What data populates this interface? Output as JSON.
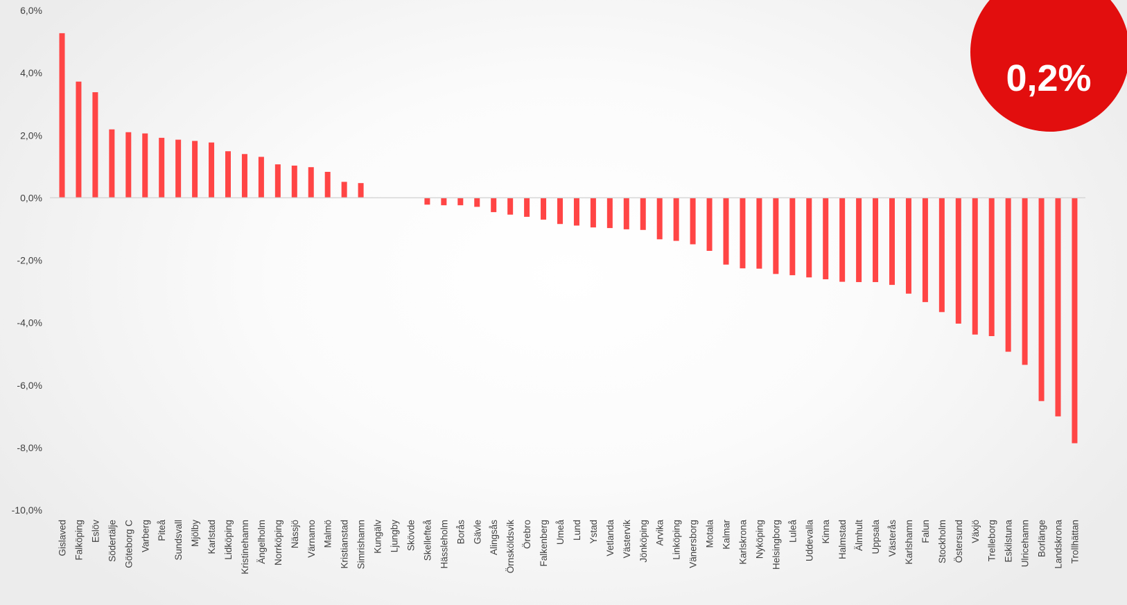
{
  "badge": {
    "value": "0,2%",
    "color": "#e20e0e"
  },
  "chart_data": {
    "type": "bar",
    "title": "",
    "xlabel": "",
    "ylabel": "",
    "ylim": [
      -10,
      6
    ],
    "yticks": [
      6,
      4,
      2,
      0,
      -2,
      -4,
      -6,
      -8,
      -10
    ],
    "ytick_labels": [
      "6,0%",
      "4,0%",
      "2,0%",
      "0,0%",
      "-2,0%",
      "-4,0%",
      "-6,0%",
      "-8,0%",
      "-10,0%"
    ],
    "grid": false,
    "bar_color": "#ff4545",
    "categories": [
      "Gislaved",
      "Falköping",
      "Eslöv",
      "Södertälje",
      "Göteborg C",
      "Varberg",
      "Piteå",
      "Sundsvall",
      "Mjölby",
      "Karlstad",
      "Lidköping",
      "Kristinehamn",
      "Ängelholm",
      "Norrköping",
      "Nässjö",
      "Värnamo",
      "Malmö",
      "Kristianstad",
      "Simrishamn",
      "Kungälv",
      "Ljungby",
      "Skövde",
      "Skellefteå",
      "Hässleholm",
      "Borås",
      "Gävle",
      "Alingsås",
      "Örnsköldsvik",
      "Örebro",
      "Falkenberg",
      "Umeå",
      "Lund",
      "Ystad",
      "Vetlanda",
      "Västervik",
      "Jönköping",
      "Arvika",
      "Linköping",
      "Vänersborg",
      "Motala",
      "Kalmar",
      "Karlskrona",
      "Nyköping",
      "Helsingborg",
      "Luleå",
      "Uddevalla",
      "Kinna",
      "Halmstad",
      "Älmhult",
      "Uppsala",
      "Västerås",
      "Karlshamn",
      "Falun",
      "Stockholm",
      "Östersund",
      "Växjö",
      "Trelleborg",
      "Eskilstuna",
      "Ulricehamn",
      "Borlänge",
      "Landskrona",
      "Trollhättan"
    ],
    "values": [
      5.27,
      3.72,
      3.38,
      2.19,
      2.1,
      2.06,
      1.92,
      1.86,
      1.82,
      1.77,
      1.49,
      1.4,
      1.31,
      1.07,
      1.03,
      0.98,
      0.83,
      0.51,
      0.47,
      0,
      0,
      0,
      -0.22,
      -0.24,
      -0.24,
      -0.29,
      -0.46,
      -0.54,
      -0.61,
      -0.7,
      -0.84,
      -0.89,
      -0.95,
      -0.97,
      -1.01,
      -1.03,
      -1.33,
      -1.38,
      -1.49,
      -1.7,
      -2.14,
      -2.26,
      -2.27,
      -2.44,
      -2.48,
      -2.55,
      -2.61,
      -2.69,
      -2.7,
      -2.7,
      -2.79,
      -3.07,
      -3.34,
      -3.66,
      -4.03,
      -4.38,
      -4.43,
      -4.93,
      -5.35,
      -6.51,
      -7.0,
      -7.86
    ]
  }
}
